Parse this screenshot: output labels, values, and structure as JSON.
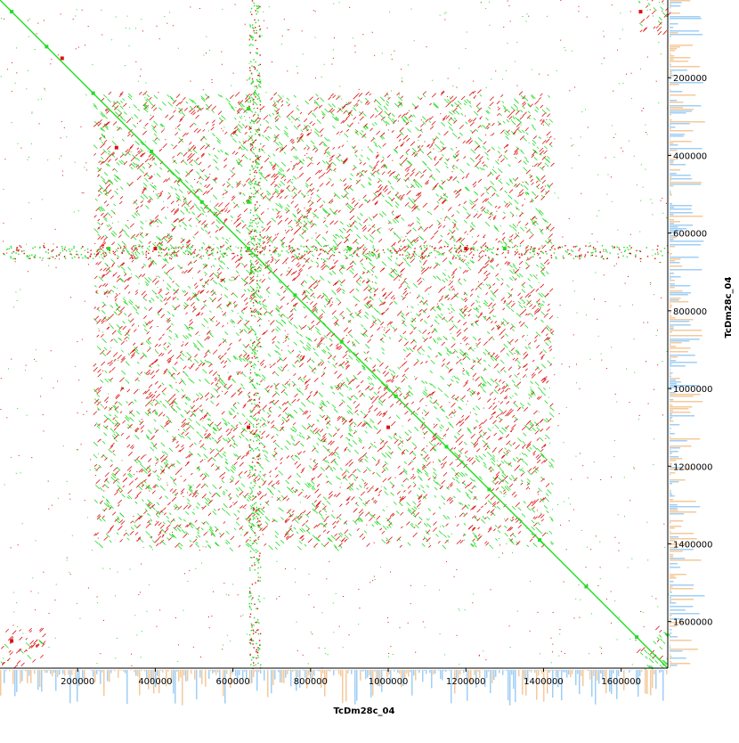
{
  "chart_data": {
    "type": "scatter",
    "plot_kind": "dot-plot (self-alignment)",
    "xlabel": "TcDm28c_04",
    "ylabel": "TcDm28c_04",
    "xlim": [
      0,
      1720000
    ],
    "ylim": [
      0,
      1720000
    ],
    "x_ticks": [
      200000,
      400000,
      600000,
      800000,
      1000000,
      1200000,
      1400000,
      1600000
    ],
    "x_tick_labels": [
      "200000",
      "400000",
      "600000",
      "800000",
      "1000000",
      "1200000",
      "1400000",
      "1600000"
    ],
    "y_ticks": [
      200000,
      400000,
      600000,
      800000,
      1000000,
      1200000,
      1400000,
      1600000
    ],
    "y_tick_labels": [
      "200000",
      "400000",
      "600000",
      "800000",
      "1000000",
      "1200000",
      "1400000",
      "1600000"
    ],
    "grid": false,
    "legend": "none",
    "colors": {
      "forward_match": "#22dd22",
      "reverse_match": "#dd1111",
      "density_blue": "#9fcff5",
      "density_orange": "#f5c99a",
      "axis": "#000000"
    },
    "series": [
      {
        "kind": "forward",
        "color": "#22dd22",
        "points": [
          [
            30000,
            30000
          ],
          [
            120000,
            120000
          ],
          [
            240000,
            240000
          ],
          [
            390000,
            390000
          ],
          [
            520000,
            520000
          ],
          [
            640000,
            640000
          ],
          [
            760000,
            760000
          ],
          [
            880000,
            880000
          ],
          [
            1020000,
            1020000
          ],
          [
            1150000,
            1150000
          ],
          [
            1260000,
            1260000
          ],
          [
            1390000,
            1390000
          ],
          [
            1510000,
            1510000
          ],
          [
            1640000,
            1640000
          ],
          [
            640000,
            280000
          ],
          [
            640000,
            520000
          ],
          [
            280000,
            640000
          ],
          [
            900000,
            640000
          ],
          [
            1300000,
            640000
          ]
        ]
      },
      {
        "kind": "reverse",
        "color": "#dd1111",
        "points": [
          [
            160000,
            150000
          ],
          [
            400000,
            640000
          ],
          [
            1200000,
            640000
          ],
          [
            640000,
            1100000
          ],
          [
            1650000,
            30000
          ],
          [
            30000,
            1650000
          ],
          [
            1000000,
            1100000
          ],
          [
            300000,
            380000
          ]
        ]
      }
    ],
    "dense_blocks": [
      {
        "x": [
          240000,
          1420000
        ],
        "y": [
          240000,
          1410000
        ],
        "mix": 0.5
      },
      {
        "x": [
          1640000,
          1720000
        ],
        "y": [
          1620000,
          1720000
        ],
        "mix": 0.2
      },
      {
        "x": [
          1640000,
          1720000
        ],
        "y": [
          0,
          90000
        ],
        "mix": 0.8
      },
      {
        "x": [
          0,
          110000
        ],
        "y": [
          1620000,
          1720000
        ],
        "mix": 0.8
      }
    ],
    "match_bands": [
      {
        "axis": "row",
        "range": [
          630000,
          665000
        ],
        "mix": 0.45
      },
      {
        "axis": "col",
        "range": [
          640000,
          670000
        ],
        "mix": 0.3
      }
    ]
  }
}
